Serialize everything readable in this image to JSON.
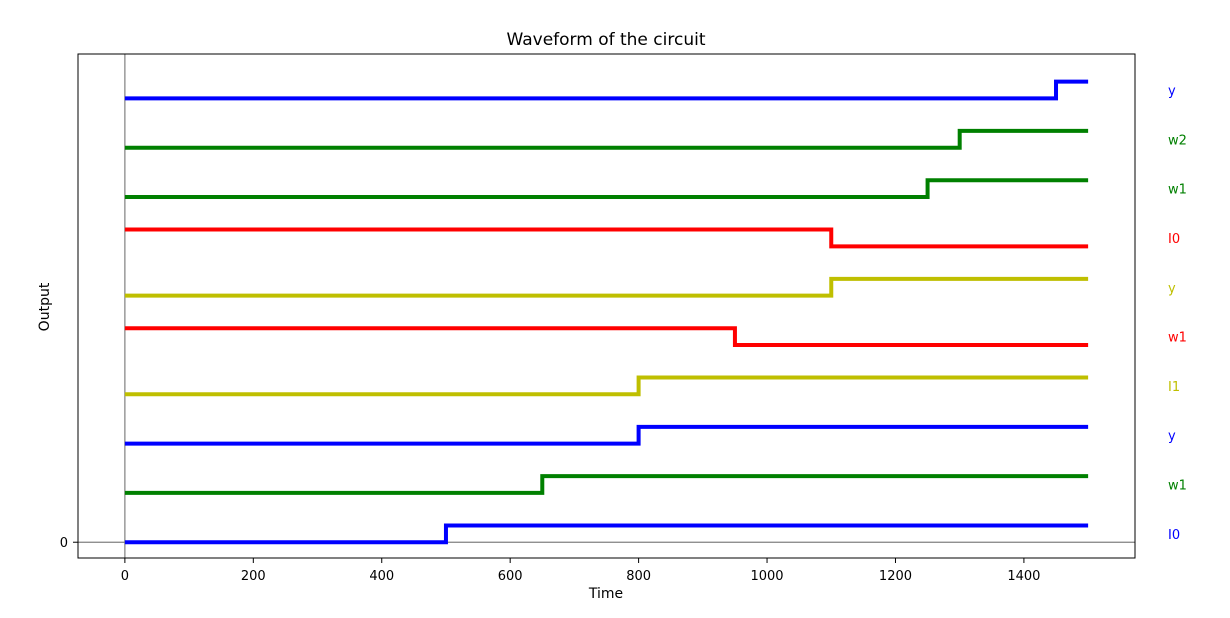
{
  "chart_data": {
    "type": "line",
    "step": true,
    "title": "Waveform of the circuit",
    "xlabel": "Time",
    "ylabel": "Output",
    "xlim": [
      -73,
      1573
    ],
    "ylim": [
      -0.32,
      9.9
    ],
    "xticks": [
      0,
      200,
      400,
      600,
      800,
      1000,
      1200,
      1400
    ],
    "yticks": [
      0
    ],
    "zero_lines": true,
    "grid": false,
    "series": [
      {
        "name": "I0",
        "color": "#0000ff",
        "offset": 0,
        "x": [
          0,
          500,
          1500
        ],
        "y": [
          0,
          1,
          1
        ]
      },
      {
        "name": "w1",
        "color": "#008000",
        "offset": 1,
        "x": [
          0,
          650,
          1500
        ],
        "y": [
          0,
          1,
          1
        ]
      },
      {
        "name": "y",
        "color": "#0000ff",
        "offset": 2,
        "x": [
          0,
          800,
          1500
        ],
        "y": [
          0,
          1,
          1
        ]
      },
      {
        "name": "I1",
        "color": "#bfbf00",
        "offset": 3,
        "x": [
          0,
          800,
          1500
        ],
        "y": [
          0,
          1,
          1
        ]
      },
      {
        "name": "w1",
        "color": "#ff0000",
        "offset": 4,
        "x": [
          0,
          950,
          1500
        ],
        "y": [
          1,
          0,
          0
        ]
      },
      {
        "name": "y",
        "color": "#bfbf00",
        "offset": 5,
        "x": [
          0,
          1100,
          1500
        ],
        "y": [
          0,
          1,
          1
        ]
      },
      {
        "name": "I0",
        "color": "#ff0000",
        "offset": 6,
        "x": [
          0,
          1100,
          1500
        ],
        "y": [
          1,
          0,
          0
        ]
      },
      {
        "name": "w1",
        "color": "#008000",
        "offset": 7,
        "x": [
          0,
          1250,
          1500
        ],
        "y": [
          0,
          1,
          1
        ]
      },
      {
        "name": "w2",
        "color": "#008000",
        "offset": 8,
        "x": [
          0,
          1300,
          1500
        ],
        "y": [
          0,
          1,
          1
        ]
      },
      {
        "name": "y",
        "color": "#0000ff",
        "offset": 9,
        "x": [
          0,
          1450,
          1500
        ],
        "y": [
          0,
          1,
          1
        ]
      }
    ]
  }
}
